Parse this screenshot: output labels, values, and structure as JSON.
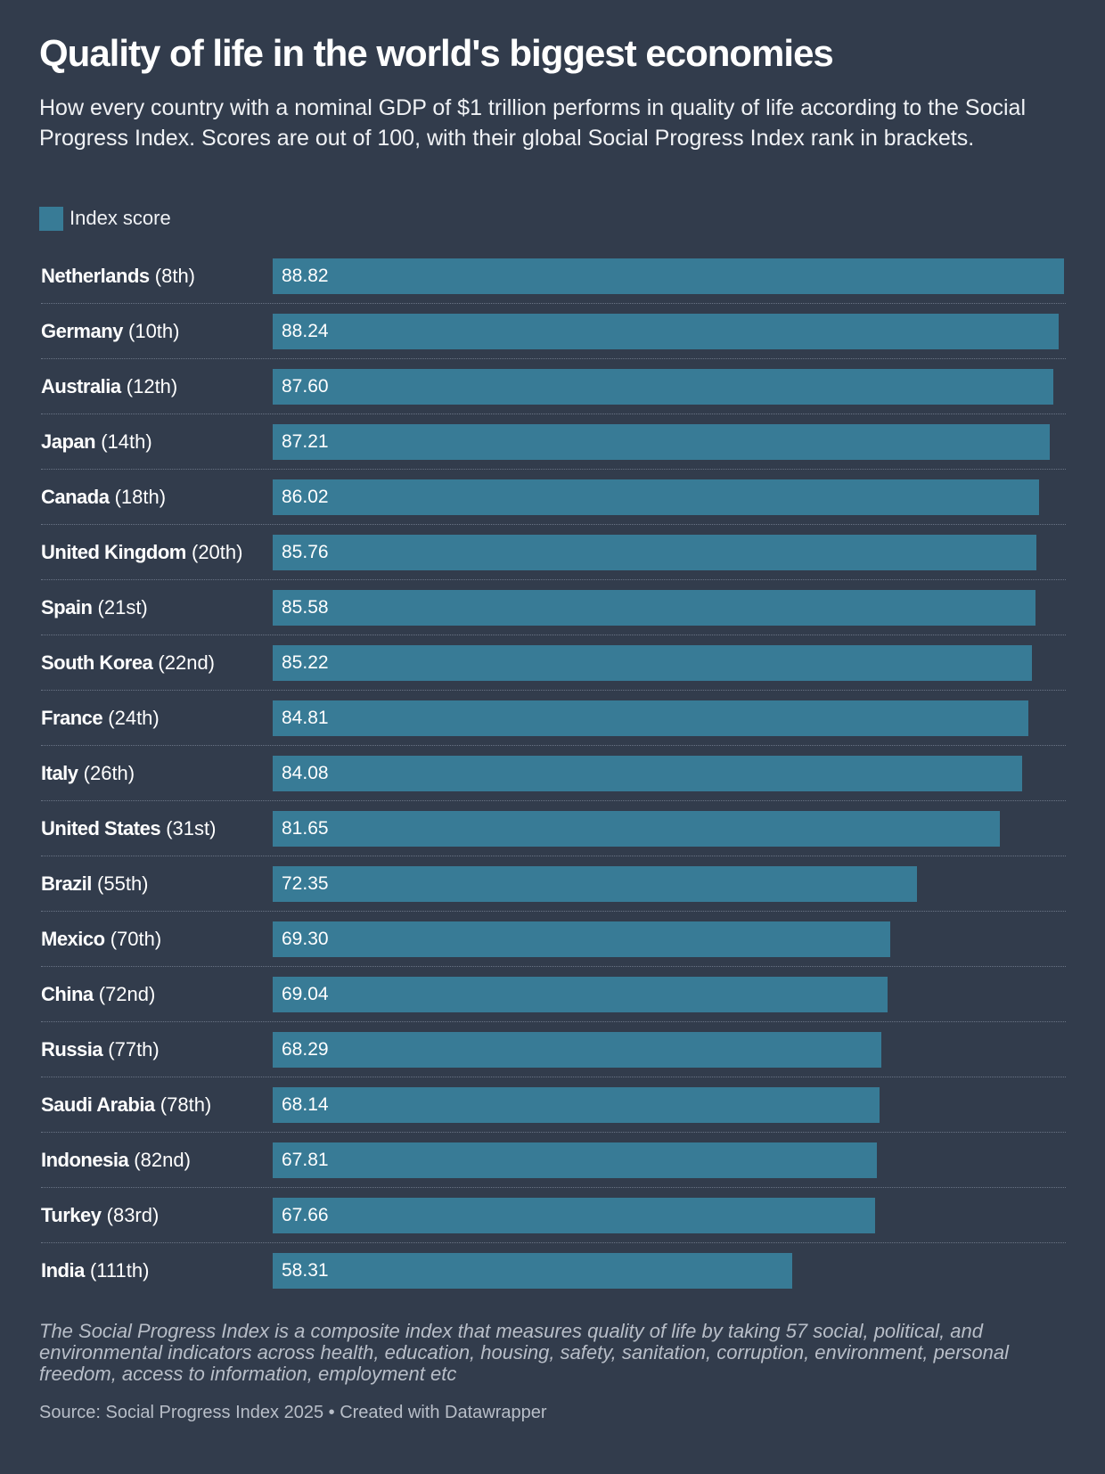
{
  "title": "Quality of life in the world's biggest economies",
  "subtitle": "How every country with a nominal GDP of $1 trillion performs in quality of life according to the Social Progress Index. Scores are out of 100, with their global Social Progress Index rank in brackets.",
  "legend": {
    "label": "Index score",
    "color": "#387b96"
  },
  "note": "The Social Progress Index is a composite index that measures quality of life by taking 57 social, political, and environmental indicators across health, education, housing, safety, sanitation, corruption, environment, personal freedom, access to information, employment etc",
  "source": "Source: Social Progress Index 2025 • Created with Datawrapper",
  "chart_data": {
    "type": "bar",
    "orientation": "horizontal",
    "bar_color": "#387b96",
    "grid": false,
    "legend_position": "top-left",
    "categories": [
      "Netherlands",
      "Germany",
      "Australia",
      "Japan",
      "Canada",
      "United Kingdom",
      "Spain",
      "South Korea",
      "France",
      "Italy",
      "United States",
      "Brazil",
      "Mexico",
      "China",
      "Russia",
      "Saudi Arabia",
      "Indonesia",
      "Turkey",
      "India"
    ],
    "ranks": [
      "(8th)",
      "(10th)",
      "(12th)",
      "(14th)",
      "(18th)",
      "(20th)",
      "(21st)",
      "(22nd)",
      "(24th)",
      "(26th)",
      "(31st)",
      "(55th)",
      "(70th)",
      "(72nd)",
      "(77th)",
      "(78th)",
      "(82nd)",
      "(83rd)",
      "(111th)"
    ],
    "series": [
      {
        "name": "Index score",
        "values": [
          88.82,
          88.24,
          87.6,
          87.21,
          86.02,
          85.76,
          85.58,
          85.22,
          84.81,
          84.08,
          81.65,
          72.35,
          69.3,
          69.04,
          68.29,
          68.14,
          67.81,
          67.66,
          58.31
        ]
      }
    ],
    "value_labels": [
      "88.82",
      "88.24",
      "87.60",
      "87.21",
      "86.02",
      "85.76",
      "85.58",
      "85.22",
      "84.81",
      "84.08",
      "81.65",
      "72.35",
      "69.30",
      "69.04",
      "68.29",
      "68.14",
      "67.81",
      "67.66",
      "58.31"
    ],
    "xlim": [
      0,
      88.82
    ]
  }
}
